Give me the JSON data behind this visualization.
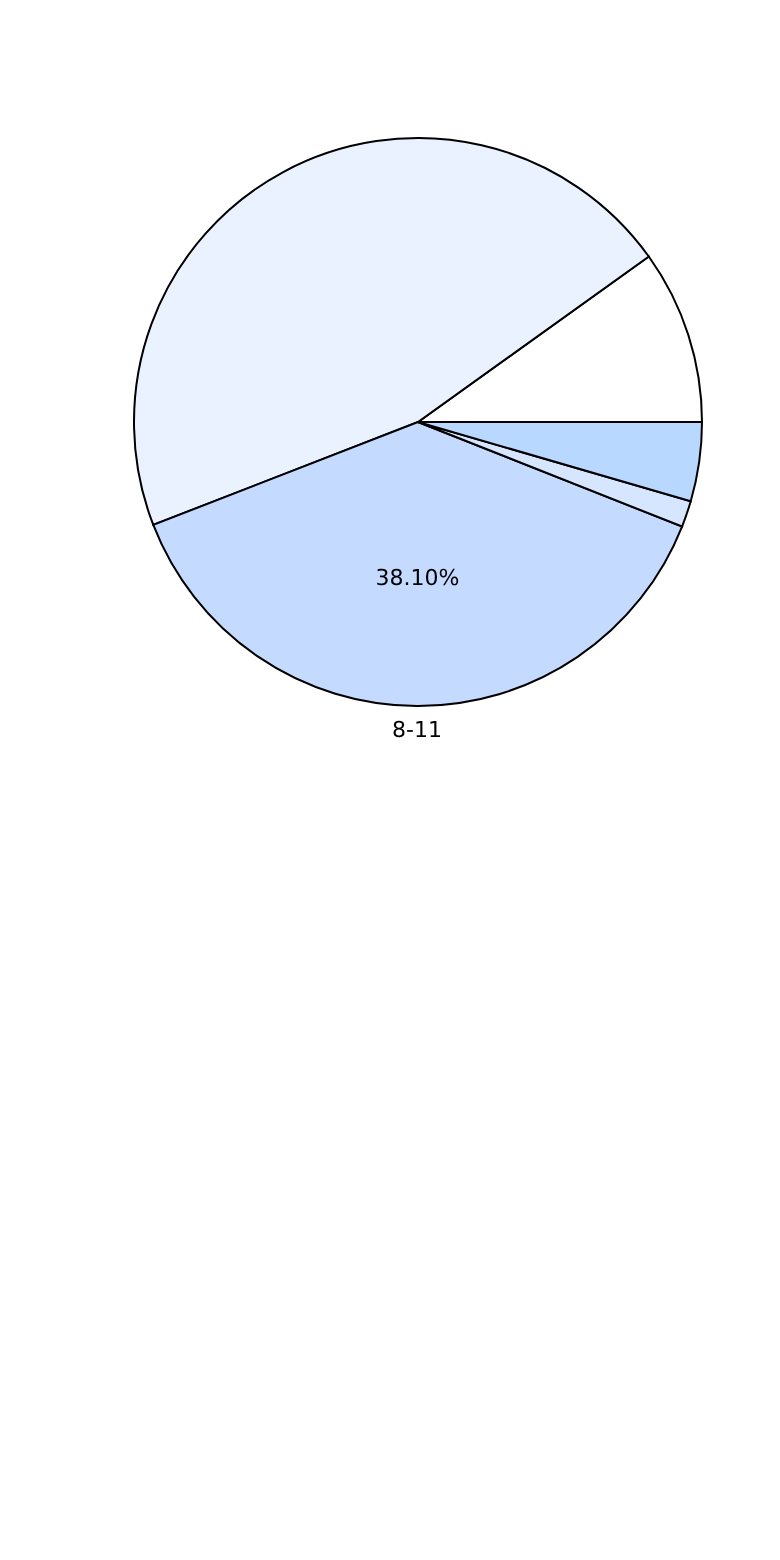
{
  "chart_data": {
    "type": "pie",
    "categories": [
      null,
      null,
      "8-11",
      null,
      null
    ],
    "values": [
      9.9,
      46.0,
      38.1,
      1.5,
      4.5
    ],
    "colors": [
      "#ffffff",
      "#eaf1ff",
      "#c4daff",
      "#d6e6ff",
      "#b8d8ff"
    ],
    "value_labels": [
      null,
      null,
      "38.10%",
      null,
      null
    ],
    "legend": false
  }
}
